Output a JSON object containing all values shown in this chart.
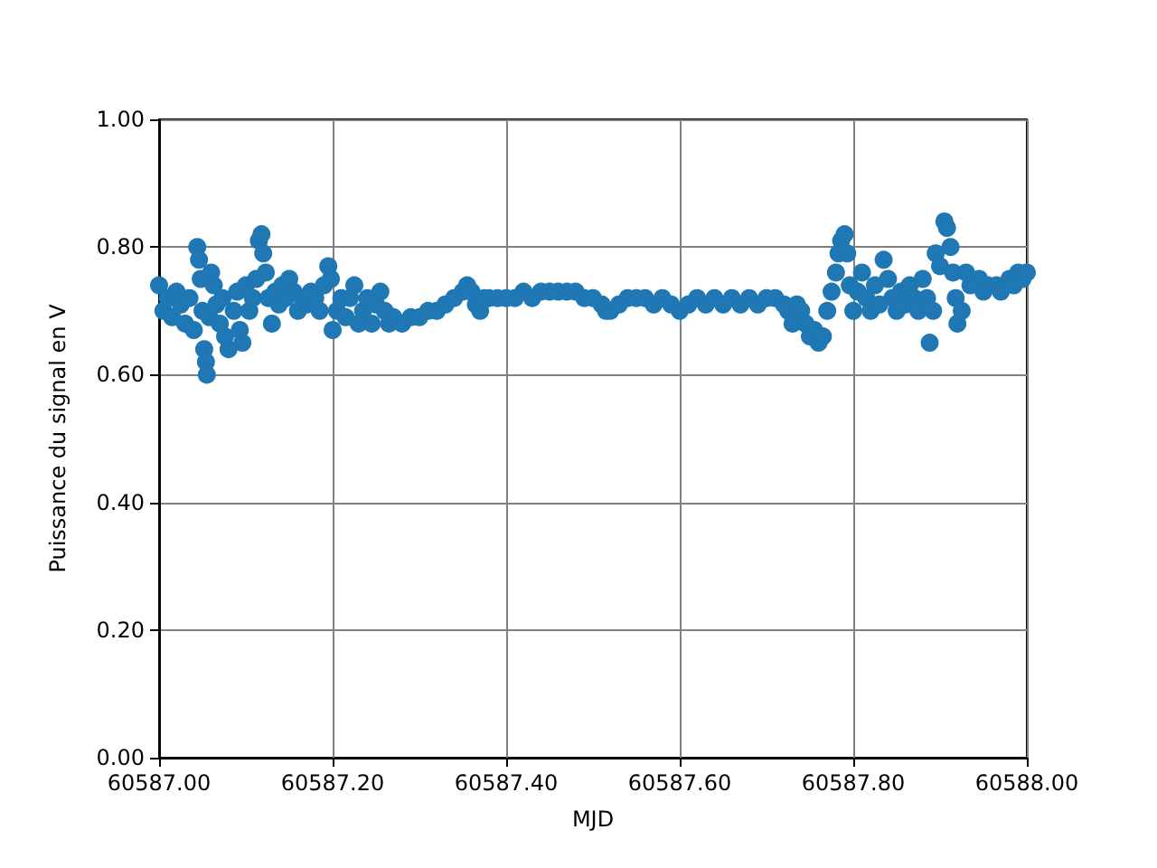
{
  "chart_data": {
    "type": "scatter",
    "xlabel": "MJD",
    "ylabel": "Puissance du signal en V",
    "marker": "circle",
    "grid": true,
    "xlim": [
      60587.0,
      60588.0
    ],
    "xticks": [
      {
        "value": 60587.0,
        "label": "60587.00"
      },
      {
        "value": 60587.2,
        "label": "60587.20"
      },
      {
        "value": 60587.4,
        "label": "60587.40"
      },
      {
        "value": 60587.6,
        "label": "60587.60"
      },
      {
        "value": 60587.8,
        "label": "60587.80"
      },
      {
        "value": 60588.0,
        "label": "60588.00"
      }
    ],
    "ylim": [
      0,
      1
    ],
    "yticks": [
      {
        "value": 0,
        "label": "0.00"
      },
      {
        "value": 0.2,
        "label": "0.20"
      },
      {
        "value": 0.4,
        "label": "0.40"
      },
      {
        "value": 0.6,
        "label": "0.60"
      },
      {
        "value": 0.8,
        "label": "0.80"
      },
      {
        "value": 1,
        "label": "1.00"
      }
    ],
    "series": [
      {
        "color": "#1f77b4",
        "x": [
          60587.0,
          60587.005,
          60587.01,
          60587.015,
          60587.02,
          60587.025,
          60587.03,
          60587.035,
          60587.04,
          60587.044,
          60587.046,
          60587.048,
          60587.05,
          60587.052,
          60587.054,
          60587.055,
          60587.058,
          60587.06,
          60587.063,
          60587.066,
          60587.07,
          60587.073,
          60587.076,
          60587.08,
          60587.086,
          60587.09,
          60587.093,
          60587.096,
          60587.1,
          60587.104,
          60587.108,
          60587.112,
          60587.115,
          60587.118,
          60587.12,
          60587.123,
          60587.126,
          60587.13,
          60587.134,
          60587.138,
          60587.142,
          60587.146,
          60587.15,
          60587.155,
          60587.16,
          60587.165,
          60587.17,
          60587.175,
          60587.18,
          60587.185,
          60587.19,
          60587.195,
          60587.198,
          60587.2,
          60587.205,
          60587.21,
          60587.215,
          60587.22,
          60587.225,
          60587.23,
          60587.235,
          60587.24,
          60587.245,
          60587.25,
          60587.255,
          60587.26,
          60587.265,
          60587.27,
          60587.28,
          60587.29,
          60587.3,
          60587.31,
          60587.32,
          60587.33,
          60587.34,
          60587.35,
          60587.355,
          60587.36,
          60587.365,
          60587.37,
          60587.375,
          60587.38,
          60587.39,
          60587.4,
          60587.41,
          60587.42,
          60587.43,
          60587.44,
          60587.45,
          60587.46,
          60587.47,
          60587.48,
          60587.49,
          60587.5,
          60587.51,
          60587.515,
          60587.52,
          60587.53,
          60587.54,
          60587.55,
          60587.56,
          60587.57,
          60587.58,
          60587.59,
          60587.6,
          60587.61,
          60587.62,
          60587.63,
          60587.64,
          60587.65,
          60587.66,
          60587.67,
          60587.68,
          60587.69,
          60587.7,
          60587.71,
          60587.72,
          60587.725,
          60587.73,
          60587.735,
          60587.74,
          60587.745,
          60587.75,
          60587.755,
          60587.76,
          60587.765,
          60587.77,
          60587.775,
          60587.78,
          60587.783,
          60587.786,
          60587.79,
          60587.793,
          60587.796,
          60587.8,
          60587.805,
          60587.81,
          60587.815,
          60587.82,
          60587.825,
          60587.83,
          60587.835,
          60587.84,
          60587.845,
          60587.85,
          60587.855,
          60587.86,
          60587.865,
          60587.87,
          60587.875,
          60587.88,
          60587.885,
          60587.888,
          60587.892,
          60587.895,
          60587.9,
          60587.905,
          60587.908,
          60587.912,
          60587.915,
          60587.918,
          60587.92,
          60587.925,
          60587.93,
          60587.935,
          60587.945,
          60587.95,
          60587.955,
          60587.965,
          60587.97,
          60587.98,
          60587.985,
          60587.99,
          60587.995,
          60588.0
        ],
        "values": [
          0.74,
          0.7,
          0.72,
          0.69,
          0.73,
          0.71,
          0.68,
          0.72,
          0.67,
          0.8,
          0.78,
          0.75,
          0.7,
          0.64,
          0.62,
          0.6,
          0.69,
          0.76,
          0.74,
          0.71,
          0.68,
          0.72,
          0.66,
          0.64,
          0.7,
          0.73,
          0.67,
          0.65,
          0.74,
          0.7,
          0.72,
          0.75,
          0.81,
          0.82,
          0.79,
          0.76,
          0.72,
          0.68,
          0.73,
          0.71,
          0.74,
          0.72,
          0.75,
          0.73,
          0.7,
          0.72,
          0.71,
          0.73,
          0.72,
          0.7,
          0.74,
          0.77,
          0.75,
          0.67,
          0.7,
          0.72,
          0.69,
          0.72,
          0.74,
          0.68,
          0.7,
          0.72,
          0.68,
          0.71,
          0.73,
          0.7,
          0.68,
          0.69,
          0.68,
          0.69,
          0.69,
          0.7,
          0.7,
          0.71,
          0.72,
          0.73,
          0.74,
          0.73,
          0.71,
          0.7,
          0.72,
          0.72,
          0.72,
          0.72,
          0.72,
          0.73,
          0.72,
          0.73,
          0.73,
          0.73,
          0.73,
          0.73,
          0.72,
          0.72,
          0.71,
          0.7,
          0.7,
          0.71,
          0.72,
          0.72,
          0.72,
          0.71,
          0.72,
          0.71,
          0.7,
          0.71,
          0.72,
          0.71,
          0.72,
          0.71,
          0.72,
          0.71,
          0.72,
          0.71,
          0.72,
          0.72,
          0.71,
          0.7,
          0.68,
          0.71,
          0.7,
          0.68,
          0.66,
          0.67,
          0.65,
          0.66,
          0.7,
          0.73,
          0.76,
          0.79,
          0.81,
          0.82,
          0.79,
          0.74,
          0.7,
          0.73,
          0.76,
          0.72,
          0.7,
          0.74,
          0.71,
          0.78,
          0.75,
          0.72,
          0.7,
          0.73,
          0.71,
          0.74,
          0.72,
          0.7,
          0.75,
          0.72,
          0.65,
          0.7,
          0.79,
          0.77,
          0.84,
          0.83,
          0.8,
          0.76,
          0.72,
          0.68,
          0.7,
          0.76,
          0.74,
          0.75,
          0.73,
          0.74,
          0.74,
          0.73,
          0.75,
          0.74,
          0.76,
          0.75,
          0.76
        ]
      }
    ]
  }
}
